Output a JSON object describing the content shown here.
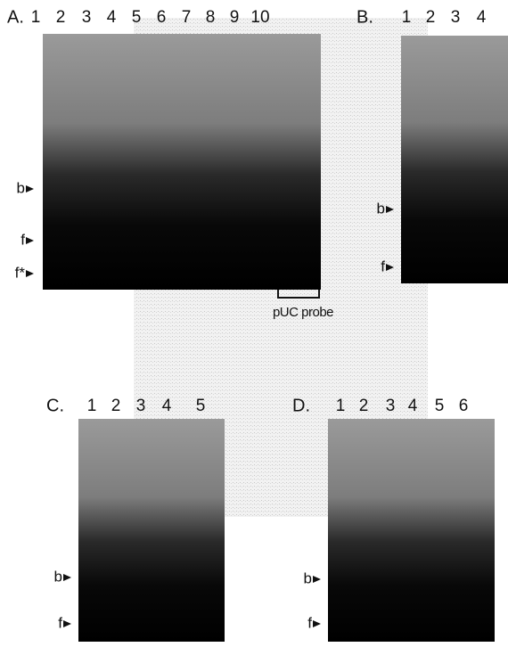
{
  "panels": [
    {
      "label": "A.",
      "lanes": [
        "1",
        "2",
        "3",
        "4",
        "5",
        "6",
        "7",
        "8",
        "9",
        "10"
      ],
      "markers": [
        "b",
        "f",
        "f*"
      ],
      "annotation": "pUC probe"
    },
    {
      "label": "B.",
      "lanes": [
        "1",
        "2",
        "3",
        "4"
      ],
      "markers": [
        "b",
        "f"
      ]
    },
    {
      "label": "C.",
      "lanes": [
        "1",
        "2",
        "3",
        "4",
        "5"
      ],
      "markers": [
        "b",
        "f"
      ]
    },
    {
      "label": "D.",
      "lanes": [
        "1",
        "2",
        "3",
        "4",
        "5",
        "6"
      ],
      "markers": [
        "b",
        "f"
      ]
    }
  ]
}
